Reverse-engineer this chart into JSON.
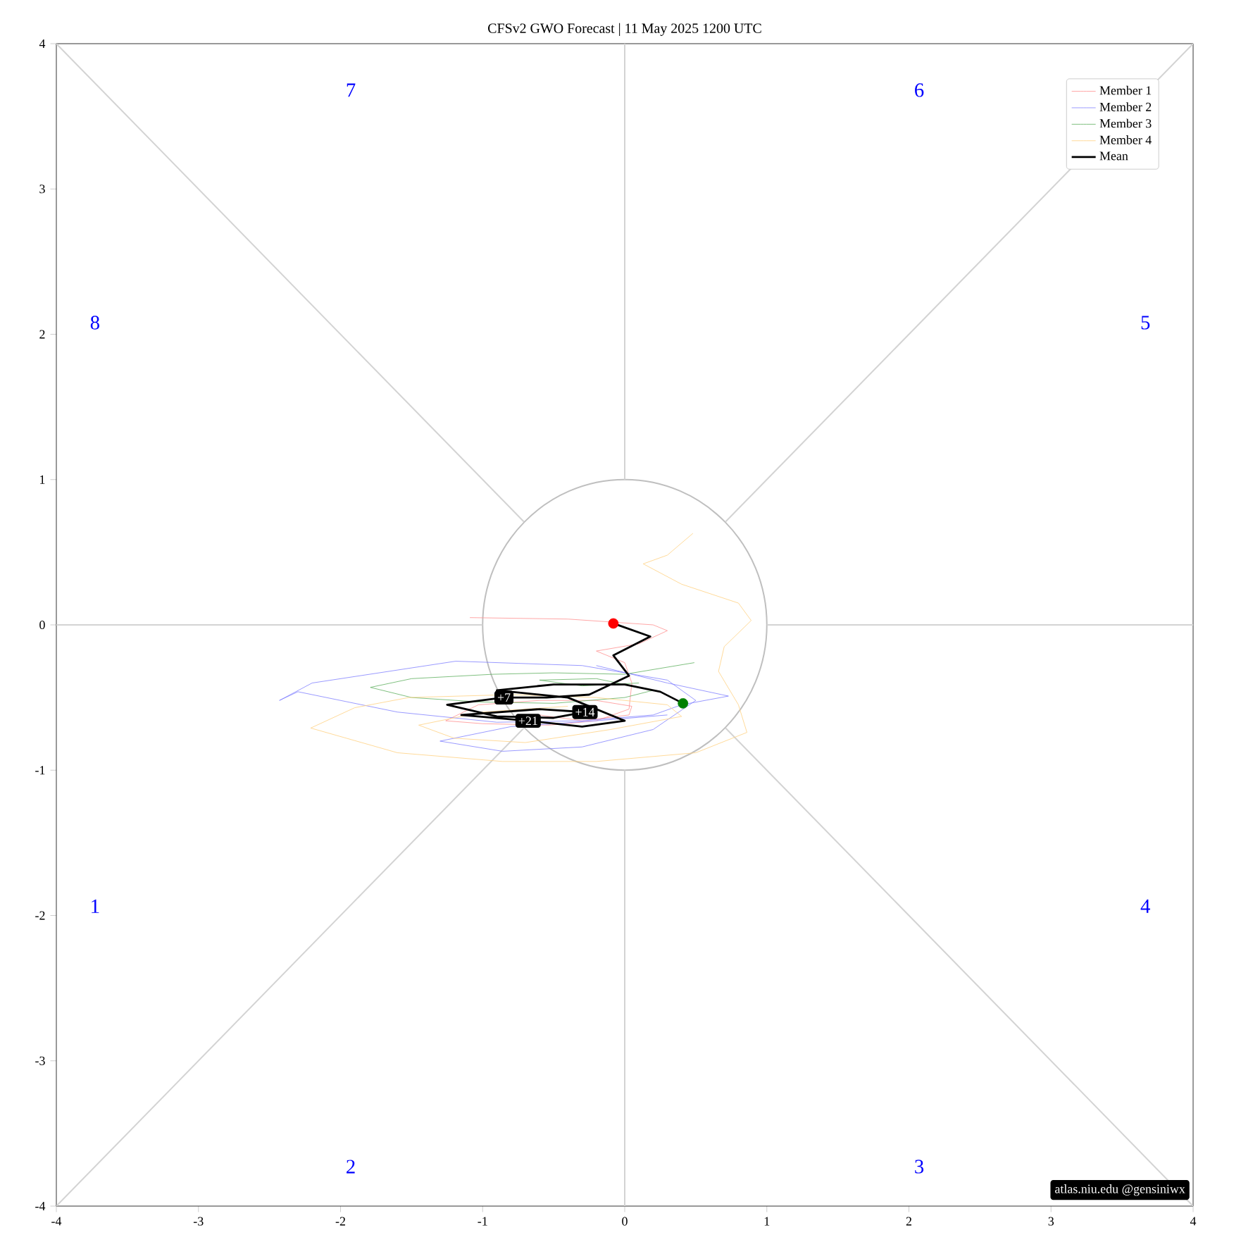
{
  "chart_data": {
    "type": "line",
    "title": "CFSv2 GWO Forecast  |  11  May  2025 1200 UTC",
    "xlim": [
      -4,
      4
    ],
    "ylim": [
      -4,
      4
    ],
    "xticks": [
      -4,
      -3,
      -2,
      -1,
      0,
      1,
      2,
      3,
      4
    ],
    "yticks": [
      -4,
      -3,
      -2,
      -1,
      0,
      1,
      2,
      3,
      4
    ],
    "legend": "top right",
    "marker": "none",
    "line_style": "solid",
    "series": [
      {
        "color": "#d3d3d3",
        "x": [
          -4,
          -0.71
        ],
        "values": [
          -4,
          -0.71
        ]
      },
      {
        "color": "#d3d3d3",
        "x": [
          0.71,
          4
        ],
        "values": [
          0.71,
          4
        ]
      },
      {
        "color": "#d3d3d3",
        "x": [
          -4,
          -0.71
        ],
        "values": [
          4,
          0.71
        ]
      },
      {
        "color": "#d3d3d3",
        "x": [
          0.71,
          4
        ],
        "values": [
          -0.71,
          -4
        ]
      },
      {
        "color": "#d3d3d3",
        "x": [
          -4,
          -1
        ],
        "values": [
          0,
          0
        ]
      },
      {
        "color": "#d3d3d3",
        "x": [
          1,
          4
        ],
        "values": [
          0,
          0
        ]
      },
      {
        "color": "#d3d3d3",
        "x": [
          0,
          0
        ],
        "values": [
          -4,
          -1
        ]
      },
      {
        "color": "#d3d3d3",
        "x": [
          0,
          0
        ],
        "values": [
          1,
          4
        ]
      },
      {
        "name": "Member 1",
        "color": "#ff9090",
        "x": [
          -1.09,
          -0.4,
          0.2,
          0.3,
          0.1,
          -0.2,
          0.0,
          0.05,
          0.03,
          -0.2,
          -0.53,
          -1.0,
          -1.26,
          -1.03,
          -0.6,
          -0.2,
          0.05,
          0.03,
          -0.3,
          -0.6
        ],
        "values": [
          0.05,
          0.04,
          0.0,
          -0.04,
          -0.13,
          -0.18,
          -0.26,
          -0.4,
          -0.58,
          -0.66,
          -0.69,
          -0.68,
          -0.66,
          -0.55,
          -0.52,
          -0.52,
          -0.56,
          -0.62,
          -0.66,
          -0.62
        ]
      },
      {
        "name": "Member 2",
        "color": "#8080ff",
        "x": [
          -0.2,
          0.3,
          0.73,
          0.4,
          0.2,
          -0.3,
          -0.9,
          -1.6,
          -2.3,
          -2.43,
          -2.2,
          -1.19,
          -0.3,
          0.3,
          0.5,
          0.2,
          -0.3,
          -0.86,
          -1.3,
          -0.8,
          -0.2,
          0.3
        ],
        "values": [
          -0.28,
          -0.4,
          -0.49,
          -0.55,
          -0.62,
          -0.66,
          -0.67,
          -0.6,
          -0.46,
          -0.52,
          -0.4,
          -0.25,
          -0.28,
          -0.38,
          -0.52,
          -0.72,
          -0.84,
          -0.87,
          -0.8,
          -0.7,
          -0.66,
          -0.62
        ]
      },
      {
        "name": "Member 3",
        "color": "#60b060",
        "x": [
          0.49,
          0.0,
          -0.5,
          -0.93,
          -1.5,
          -1.79,
          -1.5,
          -1.03,
          -0.5,
          0.0,
          0.2,
          -0.2,
          -0.6,
          -0.3,
          0.1
        ],
        "values": [
          -0.26,
          -0.34,
          -0.33,
          -0.34,
          -0.37,
          -0.43,
          -0.5,
          -0.53,
          -0.54,
          -0.5,
          -0.45,
          -0.37,
          -0.38,
          -0.42,
          -0.4
        ]
      },
      {
        "name": "Member 4",
        "color": "#ffd080",
        "x": [
          0.48,
          0.3,
          0.13,
          0.4,
          0.8,
          0.89,
          0.7,
          0.66,
          0.8,
          0.86,
          0.5,
          -0.2,
          -0.86,
          -1.6,
          -2.21,
          -1.9,
          -1.52,
          -0.8,
          -0.2,
          0.3,
          0.4,
          -0.1,
          -0.7,
          -1.2,
          -1.45,
          -1.0,
          -0.4
        ],
        "values": [
          0.63,
          0.48,
          0.42,
          0.28,
          0.15,
          0.03,
          -0.15,
          -0.32,
          -0.55,
          -0.74,
          -0.88,
          -0.94,
          -0.94,
          -0.88,
          -0.71,
          -0.57,
          -0.5,
          -0.48,
          -0.5,
          -0.55,
          -0.63,
          -0.72,
          -0.81,
          -0.78,
          -0.69,
          -0.6,
          -0.56
        ]
      },
      {
        "name": "Mean",
        "color": "#000000",
        "x": [
          -0.08,
          0.18,
          -0.08,
          0.03,
          -0.25,
          -0.55,
          -0.85,
          -1.25,
          -0.9,
          -0.5,
          -0.28,
          -0.6,
          -1.15,
          -0.68,
          -0.3,
          0.0,
          -0.4,
          -0.9,
          -0.5,
          0.0,
          0.25,
          0.41
        ],
        "values": [
          0.01,
          -0.08,
          -0.21,
          -0.35,
          -0.48,
          -0.5,
          -0.5,
          -0.55,
          -0.63,
          -0.64,
          -0.6,
          -0.58,
          -0.62,
          -0.66,
          -0.7,
          -0.66,
          -0.5,
          -0.45,
          -0.41,
          -0.41,
          -0.46,
          -0.54
        ]
      },
      {
        "type": "scatter",
        "marker": "circle",
        "color": "#ff0000",
        "x": [
          -0.08
        ],
        "values": [
          0.01
        ]
      },
      {
        "type": "scatter",
        "marker": "circle",
        "color": "#008000",
        "x": [
          0.41
        ],
        "values": [
          -0.54
        ]
      }
    ],
    "annotations": [
      "1",
      "2",
      "3",
      "4",
      "5",
      "6",
      "7",
      "8",
      {
        "text": "+7",
        "x": -0.85,
        "y": -0.5
      },
      {
        "text": "+14",
        "x": -0.28,
        "y": -0.6
      },
      {
        "text": "+21",
        "x": -0.68,
        "y": -0.66
      },
      "atlas.niu.edu  @gensiniwx"
    ]
  }
}
